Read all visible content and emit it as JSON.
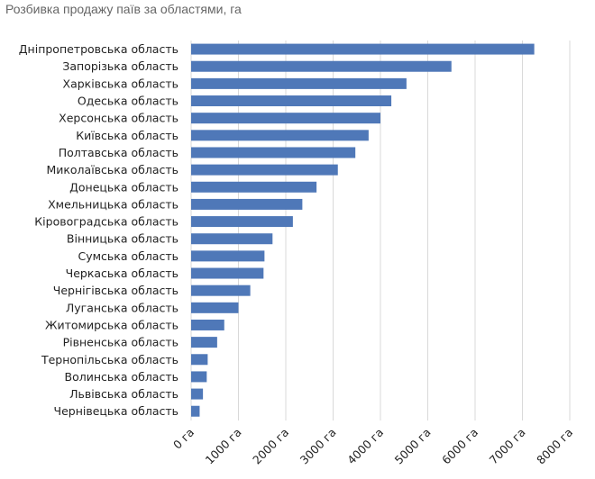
{
  "chart_data": {
    "type": "bar",
    "orientation": "horizontal",
    "title": "Розбивка продажу паїв за областями, га",
    "categories": [
      "Дніпропетровська область",
      "Запорізька область",
      "Харківська область",
      "Одеська область",
      "Херсонська область",
      "Київська область",
      "Полтавська область",
      "Миколаївська область",
      "Донецька область",
      "Хмельницька область",
      "Кіровоградська область",
      "Вінницька область",
      "Сумська область",
      "Черкаська область",
      "Чернігівська область",
      "Луганська область",
      "Житомирська область",
      "Рівненська область",
      "Тернопільська область",
      "Волинська область",
      "Львівська область",
      "Чернівецька область"
    ],
    "values": [
      7250,
      5500,
      4550,
      4230,
      4000,
      3750,
      3470,
      3100,
      2650,
      2350,
      2150,
      1720,
      1550,
      1530,
      1250,
      1000,
      700,
      550,
      350,
      330,
      250,
      180
    ],
    "xlim": [
      0,
      8000
    ],
    "xticks": [
      "0 га",
      "1000 га",
      "2000 га",
      "3000 га",
      "4000 га",
      "5000 га",
      "6000 га",
      "7000 га",
      "8000 га"
    ],
    "xlabel": "",
    "ylabel": "",
    "grid": "vertical",
    "bar_color": "#4f78b8",
    "grid_color": "#d9d9d9"
  }
}
